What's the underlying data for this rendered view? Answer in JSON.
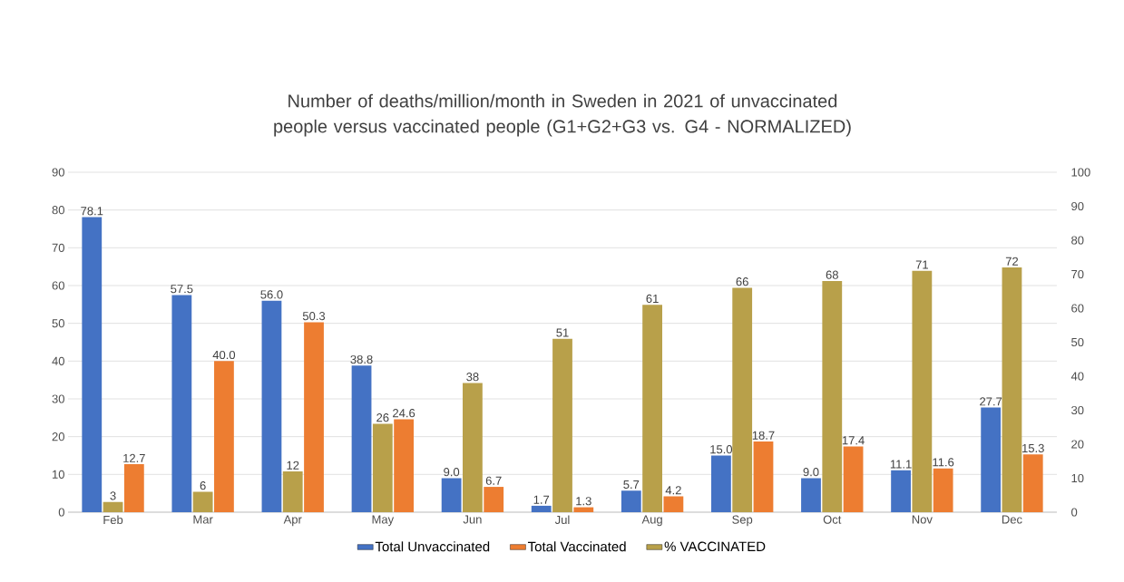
{
  "chart_data": {
    "type": "bar",
    "title": "Number of deaths/million/month in Sweden in 2021 of unvaccinated people versus vaccinated people (G1+G2+G3 vs. G4 - NORMALIZED)",
    "categories": [
      "Feb",
      "Mar",
      "Apr",
      "May",
      "Jun",
      "Jul",
      "Aug",
      "Sep",
      "Oct",
      "Nov",
      "Dec"
    ],
    "series": [
      {
        "name": "Total Unvaccinated",
        "color": "#4472c4",
        "values": [
          78.1,
          57.5,
          56.0,
          38.8,
          9.0,
          1.7,
          5.7,
          15.0,
          9.0,
          11.1,
          27.7
        ],
        "value_labels": [
          "78.1",
          "57.5",
          "56.0",
          "38.8",
          "9.0",
          "1.7",
          "5.7",
          "15.0",
          "9.0",
          "11.1",
          "27.7"
        ]
      },
      {
        "name": "Total Vaccinated",
        "color": "#ed7d31",
        "values": [
          12.7,
          40.0,
          50.3,
          24.6,
          6.7,
          1.3,
          4.2,
          18.7,
          17.4,
          11.6,
          15.3
        ],
        "value_labels": [
          "12.7",
          "40.0",
          "50.3",
          "24.6",
          "6.7",
          "1.3",
          "4.2",
          "18.7",
          "17.4",
          "11.6",
          "15.3"
        ]
      },
      {
        "name": "% VACCINATED",
        "color": "#b8a04a",
        "axis": "y2",
        "values": [
          3,
          6,
          12,
          26,
          38,
          51,
          61,
          66,
          68,
          71,
          72
        ],
        "value_labels": [
          "3",
          "6",
          "12",
          "26",
          "38",
          "51",
          "61",
          "66",
          "68",
          "71",
          "72"
        ]
      }
    ],
    "ylim": [
      0,
      90
    ],
    "yticks": [
      0,
      10,
      20,
      30,
      40,
      50,
      60,
      70,
      80,
      90
    ],
    "y2lim": [
      0,
      100
    ],
    "y2ticks": [
      0,
      10,
      20,
      30,
      40,
      50,
      60,
      70,
      80,
      90,
      100
    ],
    "grid": "y",
    "legend": "bottom"
  }
}
